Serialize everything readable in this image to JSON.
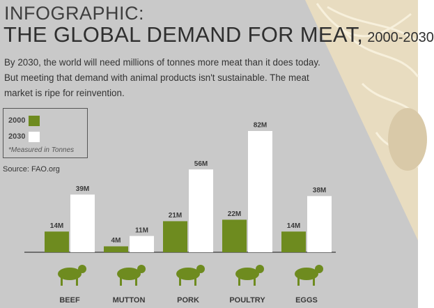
{
  "chart_data": {
    "type": "bar",
    "kicker": "INFOGRAPHIC:",
    "title": "THE GLOBAL DEMAND FOR MEAT,",
    "subtitle": "2000-2030",
    "description": "By 2030, the world will need millions of tonnes more meat than it does today. But meeting that demand with animal products isn't sustainable. The meat market is ripe for reinvention.",
    "legend_note": "*Measured in Tonnes",
    "source": "Source: FAO.org",
    "categories": [
      "BEEF",
      "MUTTON",
      "PORK",
      "POULTRY",
      "EGGS"
    ],
    "series": [
      {
        "name": "2000",
        "color": "#6e8b1f",
        "values": [
          14,
          4,
          21,
          22,
          14
        ],
        "value_labels": [
          "14M",
          "4M",
          "21M",
          "22M",
          "14M"
        ]
      },
      {
        "name": "2030",
        "color": "#ffffff",
        "values": [
          39,
          11,
          56,
          82,
          38
        ],
        "value_labels": [
          "39M",
          "11M",
          "56M",
          "82M",
          "38M"
        ]
      }
    ]
  }
}
